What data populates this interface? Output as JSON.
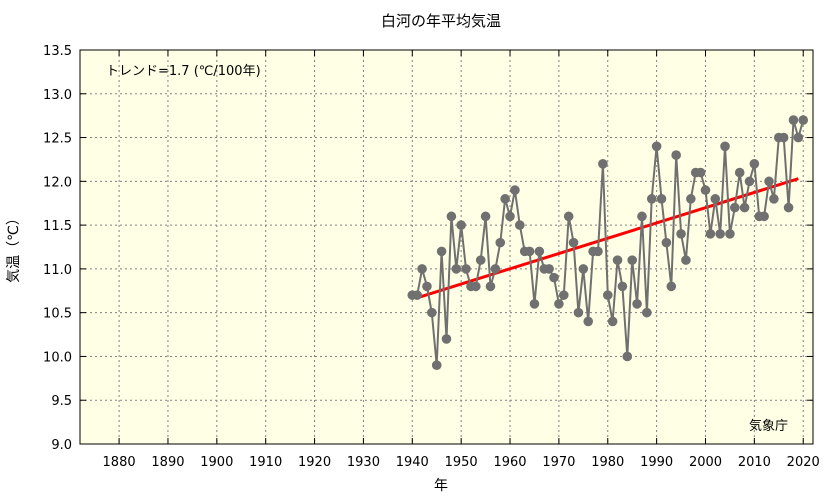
{
  "chart_data": {
    "type": "line",
    "title": "白河の年平均気温",
    "xlabel": "年",
    "ylabel": "気温（℃）",
    "xlim": [
      1872,
      2022
    ],
    "ylim": [
      9.0,
      13.5
    ],
    "x_ticks": [
      1880,
      1890,
      1900,
      1910,
      1920,
      1930,
      1940,
      1950,
      1960,
      1970,
      1980,
      1990,
      2000,
      2010,
      2020
    ],
    "y_ticks": [
      "9.0",
      "9.5",
      "10.0",
      "10.5",
      "11.0",
      "11.5",
      "12.0",
      "12.5",
      "13.0",
      "13.5"
    ],
    "grid": true,
    "annotations": {
      "trend_text": "トレンド=1.7 (℃/100年)",
      "source_text": "気象庁"
    },
    "series": [
      {
        "x": [
          1940,
          1941,
          1942,
          1943,
          1944,
          1945,
          1946,
          1947,
          1948,
          1949,
          1950,
          1951,
          1952,
          1953,
          1954,
          1955,
          1956,
          1957,
          1958,
          1959,
          1960,
          1961,
          1962,
          1963,
          1964,
          1965,
          1966,
          1967,
          1968,
          1969,
          1970,
          1971,
          1972,
          1973,
          1974,
          1975,
          1976,
          1977,
          1978,
          1979,
          1980,
          1981,
          1982,
          1983,
          1984,
          1985,
          1986,
          1987,
          1988,
          1989,
          1990,
          1991,
          1992,
          1993,
          1994,
          1995,
          1996,
          1997,
          1998,
          1999,
          2000,
          2001,
          2002,
          2003,
          2004,
          2005,
          2006,
          2007,
          2008,
          2009,
          2010,
          2011,
          2012,
          2013,
          2014,
          2015,
          2016,
          2017,
          2018,
          2019,
          2020
        ],
        "values": [
          10.7,
          10.7,
          11.0,
          10.8,
          10.5,
          9.9,
          11.2,
          10.2,
          11.6,
          11.0,
          11.5,
          11.0,
          10.8,
          10.8,
          11.1,
          11.6,
          10.8,
          11.0,
          11.3,
          11.8,
          11.6,
          11.9,
          11.5,
          11.2,
          11.2,
          10.6,
          11.2,
          11.0,
          11.0,
          10.9,
          10.6,
          10.7,
          11.6,
          11.3,
          10.5,
          11.0,
          10.4,
          11.2,
          11.2,
          12.2,
          10.7,
          10.4,
          11.1,
          10.8,
          10.0,
          11.1,
          10.6,
          11.6,
          10.5,
          11.8,
          12.4,
          11.8,
          11.3,
          10.8,
          12.3,
          11.4,
          11.1,
          11.8,
          12.1,
          12.1,
          11.9,
          11.4,
          11.8,
          11.4,
          12.4,
          11.4,
          11.7,
          12.1,
          11.7,
          12.0,
          12.2,
          11.6,
          11.6,
          12.0,
          11.8,
          12.5,
          12.5,
          11.7,
          12.7,
          12.5,
          12.7
        ],
        "color": "#707070"
      }
    ],
    "trend": {
      "x": [
        1941,
        2019
      ],
      "values": [
        10.67,
        12.03
      ],
      "color": "#ff0000"
    }
  }
}
